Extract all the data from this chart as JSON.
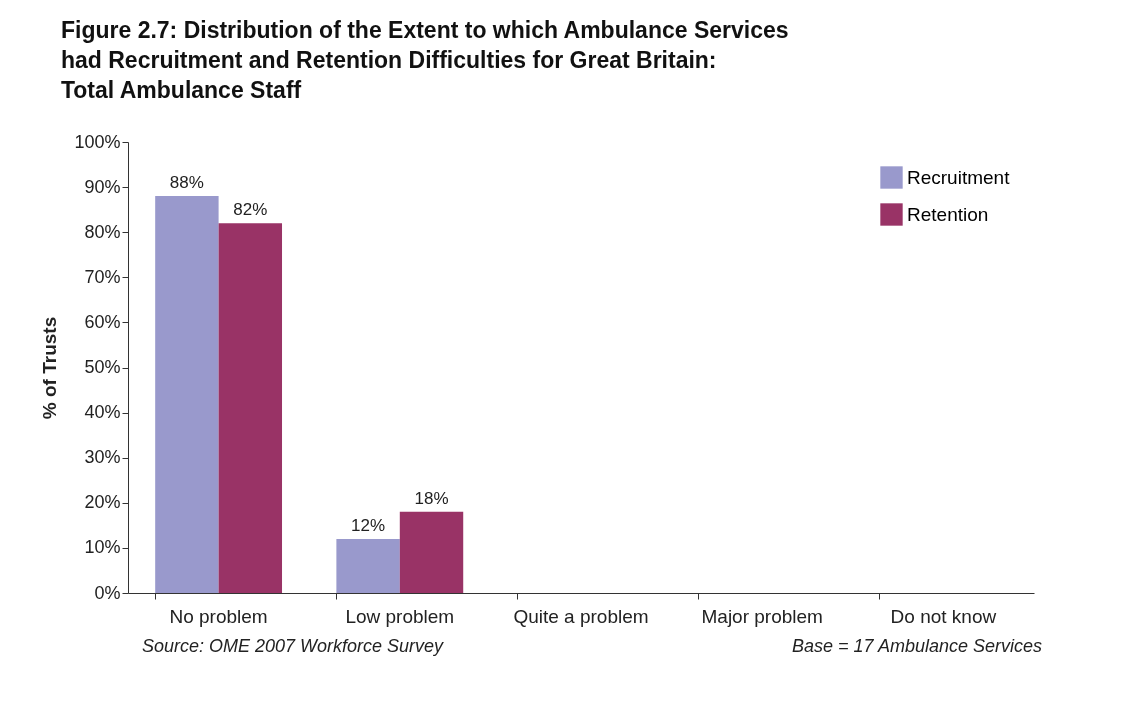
{
  "chart_data": {
    "type": "bar",
    "title": "Figure 2.7: Distribution of the Extent to which Ambulance Services\nhad Recruitment and Retention Difficulties for Great Britain:\nTotal Ambulance Staff",
    "ylabel": "% of Trusts",
    "categories": [
      "No problem",
      "Low problem",
      "Quite a problem",
      "Major problem",
      "Do not know"
    ],
    "series": [
      {
        "name": "Recruitment",
        "color": "#9999cc",
        "values": [
          88,
          12,
          0,
          0,
          0
        ],
        "value_labels": [
          "88%",
          "12%",
          null,
          null,
          null
        ]
      },
      {
        "name": "Retention",
        "color": "#993366",
        "values": [
          82,
          18,
          0,
          0,
          0
        ],
        "value_labels": [
          "82%",
          "18%",
          null,
          null,
          null
        ]
      }
    ],
    "ylim": [
      0,
      100
    ],
    "yticks": [
      {
        "value": 0,
        "label": "0%"
      },
      {
        "value": 10,
        "label": "10%"
      },
      {
        "value": 20,
        "label": "20%"
      },
      {
        "value": 30,
        "label": "30%"
      },
      {
        "value": 40,
        "label": "40%"
      },
      {
        "value": 50,
        "label": "50%"
      },
      {
        "value": 60,
        "label": "60%"
      },
      {
        "value": 70,
        "label": "70%"
      },
      {
        "value": 80,
        "label": "80%"
      },
      {
        "value": 90,
        "label": "90%"
      },
      {
        "value": 100,
        "label": "100%"
      }
    ],
    "legend": "top right",
    "grid": false,
    "annotations": [
      "Source: OME 2007 Workforce Survey",
      "Base = 17 Ambulance Services"
    ]
  }
}
